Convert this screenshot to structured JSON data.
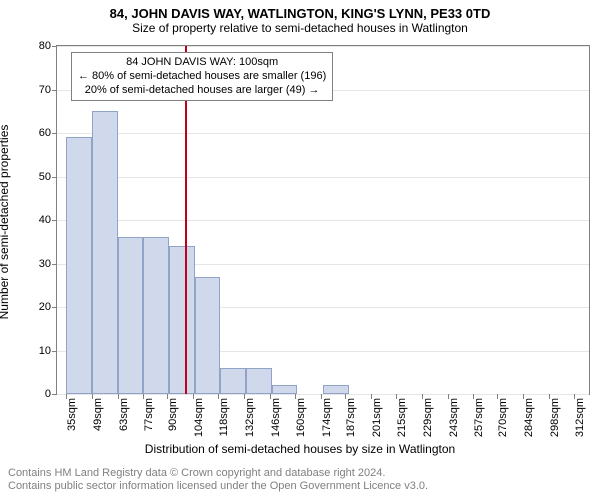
{
  "title": "84, JOHN DAVIS WAY, WATLINGTON, KING'S LYNN, PE33 0TD",
  "subtitle": "Size of property relative to semi-detached houses in Watlington",
  "ylabel": "Number of semi-detached properties",
  "xlabel": "Distribution of semi-detached houses by size in Watlington",
  "attribution_line1": "Contains HM Land Registry data © Crown copyright and database right 2024.",
  "attribution_line2": "Contains public sector information licensed under the Open Government Licence v3.0.",
  "annotation": {
    "line1": "84 JOHN DAVIS WAY: 100sqm",
    "line2": "← 80% of semi-detached houses are smaller (196)",
    "line3": "20% of semi-detached houses are larger (49) →",
    "border_color": "#808080",
    "fontsize": 11
  },
  "chart": {
    "type": "histogram",
    "background_color": "#ffffff",
    "grid_color": "#e6e6e6",
    "axis_color": "#808080",
    "title_fontsize": 13,
    "subtitle_fontsize": 12,
    "label_fontsize": 12,
    "tick_fontsize": 11,
    "attrib_fontsize": 11,
    "attrib_color": "#808080",
    "bar_fill": "#cfd9eb",
    "bar_stroke": "#91a4c7",
    "marker_line_color": "#c00018",
    "marker_line_width": 2,
    "xlim": [
      30,
      320
    ],
    "ylim": [
      0,
      80
    ],
    "ytick_step": 10,
    "marker_value": 100,
    "bin_width": 14,
    "x_ticks": [
      35,
      49,
      63,
      77,
      90,
      104,
      118,
      132,
      146,
      160,
      174,
      187,
      201,
      215,
      229,
      243,
      257,
      270,
      284,
      298,
      312
    ],
    "x_tick_labels": [
      "35sqm",
      "49sqm",
      "63sqm",
      "77sqm",
      "90sqm",
      "104sqm",
      "118sqm",
      "132sqm",
      "146sqm",
      "160sqm",
      "174sqm",
      "187sqm",
      "201sqm",
      "215sqm",
      "229sqm",
      "243sqm",
      "257sqm",
      "270sqm",
      "284sqm",
      "298sqm",
      "312sqm"
    ],
    "bars": [
      {
        "x": 42,
        "y": 59
      },
      {
        "x": 56,
        "y": 65
      },
      {
        "x": 70,
        "y": 36
      },
      {
        "x": 84,
        "y": 36
      },
      {
        "x": 98,
        "y": 34
      },
      {
        "x": 112,
        "y": 27
      },
      {
        "x": 126,
        "y": 6
      },
      {
        "x": 140,
        "y": 6
      },
      {
        "x": 154,
        "y": 2
      },
      {
        "x": 168,
        "y": 0
      },
      {
        "x": 182,
        "y": 2
      },
      {
        "x": 196,
        "y": 0
      },
      {
        "x": 210,
        "y": 0
      },
      {
        "x": 224,
        "y": 0
      },
      {
        "x": 238,
        "y": 0
      },
      {
        "x": 252,
        "y": 0
      },
      {
        "x": 266,
        "y": 0
      },
      {
        "x": 280,
        "y": 0
      },
      {
        "x": 294,
        "y": 0
      },
      {
        "x": 308,
        "y": 0
      }
    ]
  }
}
